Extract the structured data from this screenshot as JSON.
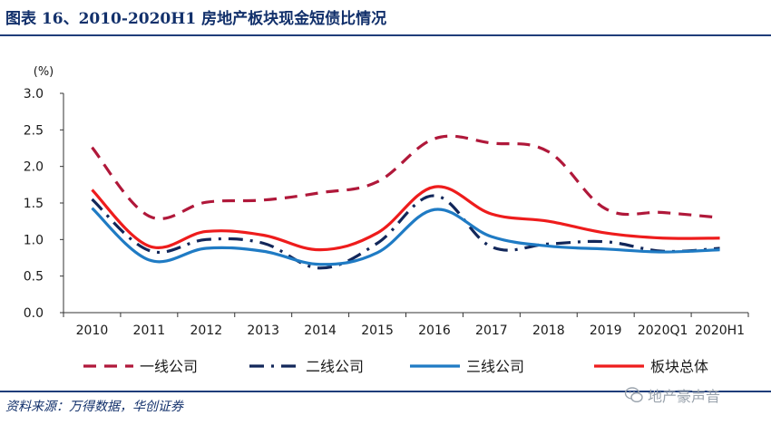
{
  "header": {
    "title": "图表 16、2010-2020H1 房地产板块现金短债比情况"
  },
  "footer": {
    "source": "资料来源：万得数据，华创证券",
    "watermark": "地产豪声音"
  },
  "colors": {
    "navy": "#12306b",
    "rule": "#1f3d7a"
  },
  "icons": {
    "watermark": "wechat-icon"
  },
  "chart_data": {
    "type": "line",
    "title": "",
    "xlabel": "",
    "ylabel": "(%)",
    "ylim": [
      0,
      3.0
    ],
    "yticks": [
      "0.0",
      "0.5",
      "1.0",
      "1.5",
      "2.0",
      "2.5",
      "3.0"
    ],
    "categories": [
      "2010",
      "2011",
      "2012",
      "2013",
      "2014",
      "2015",
      "2016",
      "2017",
      "2018",
      "2019",
      "2020Q1",
      "2020H1"
    ],
    "legend_position": "bottom",
    "grid": false,
    "series": [
      {
        "name": "一线公司",
        "color": "#b0183a",
        "style": "dashed",
        "values": [
          2.26,
          1.32,
          1.51,
          1.54,
          1.64,
          1.79,
          2.38,
          2.32,
          2.2,
          1.42,
          1.37,
          1.3
        ]
      },
      {
        "name": "二线公司",
        "color": "#12275a",
        "style": "dash-dot",
        "values": [
          1.55,
          0.85,
          1.0,
          0.95,
          0.61,
          0.95,
          1.6,
          0.9,
          0.94,
          0.97,
          0.84,
          0.88
        ]
      },
      {
        "name": "三线公司",
        "color": "#1f7bc4",
        "style": "solid",
        "values": [
          1.43,
          0.72,
          0.88,
          0.84,
          0.66,
          0.82,
          1.41,
          1.04,
          0.91,
          0.87,
          0.83,
          0.86
        ]
      },
      {
        "name": "板块总体",
        "color": "#ee1c1c",
        "style": "solid",
        "values": [
          1.68,
          0.91,
          1.11,
          1.06,
          0.86,
          1.09,
          1.72,
          1.35,
          1.25,
          1.09,
          1.02,
          1.02
        ]
      }
    ]
  }
}
